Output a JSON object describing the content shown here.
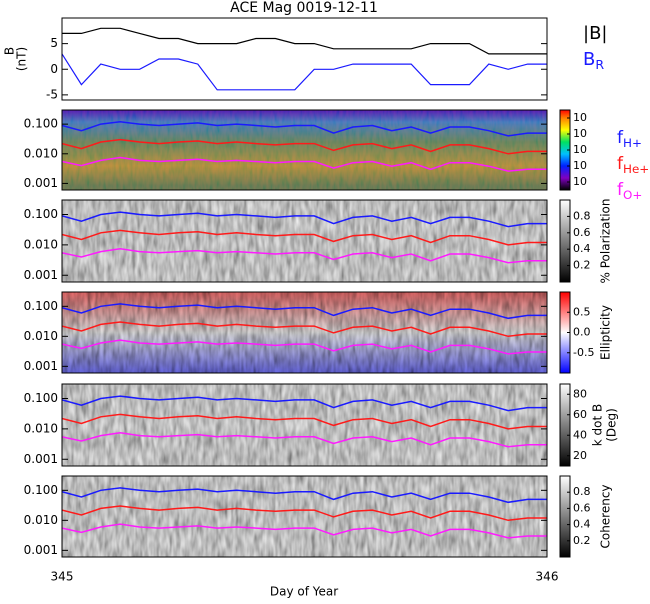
{
  "chart_data": {
    "type": "multi-panel",
    "title": "ACE Mag 0019-12-11",
    "xlabel": "Day of Year",
    "xlim": [
      345,
      346
    ],
    "xticks": [
      345,
      346
    ],
    "x": [
      345.0,
      345.04,
      345.08,
      345.12,
      345.16,
      345.2,
      345.24,
      345.28,
      345.32,
      345.36,
      345.4,
      345.44,
      345.48,
      345.52,
      345.56,
      345.6,
      345.64,
      345.68,
      345.72,
      345.76,
      345.8,
      345.84,
      345.88,
      345.92,
      345.96,
      346.0
    ],
    "frequency_series": [
      {
        "name": "f",
        "subscript": "H+",
        "color": "#1a1aff",
        "values": [
          0.09,
          0.06,
          0.1,
          0.12,
          0.1,
          0.09,
          0.1,
          0.11,
          0.09,
          0.1,
          0.09,
          0.08,
          0.09,
          0.09,
          0.05,
          0.08,
          0.09,
          0.06,
          0.08,
          0.05,
          0.08,
          0.08,
          0.06,
          0.04,
          0.05,
          0.05
        ]
      },
      {
        "name": "f",
        "subscript": "He+",
        "color": "#ff1a1a",
        "values": [
          0.022,
          0.015,
          0.025,
          0.03,
          0.025,
          0.022,
          0.025,
          0.027,
          0.022,
          0.025,
          0.022,
          0.02,
          0.022,
          0.022,
          0.013,
          0.02,
          0.022,
          0.015,
          0.02,
          0.012,
          0.02,
          0.02,
          0.015,
          0.01,
          0.012,
          0.012
        ]
      },
      {
        "name": "f",
        "subscript": "O+",
        "color": "#ff1aff",
        "values": [
          0.0055,
          0.004,
          0.006,
          0.0075,
          0.006,
          0.0055,
          0.006,
          0.0065,
          0.0055,
          0.006,
          0.0055,
          0.005,
          0.0055,
          0.0055,
          0.0033,
          0.005,
          0.0055,
          0.0038,
          0.005,
          0.003,
          0.005,
          0.005,
          0.0038,
          0.0026,
          0.003,
          0.003
        ]
      }
    ],
    "panels": [
      {
        "type": "line",
        "ylabel": "B",
        "yunit": "(nT)",
        "ylim": [
          -6,
          10
        ],
        "yticks": [
          -5,
          0,
          5
        ],
        "series": [
          {
            "name": "|B|",
            "color": "#000000",
            "values": [
              7,
              7,
              8,
              8,
              7,
              6,
              6,
              5,
              5,
              5,
              6,
              6,
              5,
              5,
              4,
              4,
              4,
              4,
              4,
              5,
              5,
              5,
              3,
              3,
              3,
              3
            ]
          },
          {
            "name": "B",
            "subscript": "R",
            "color": "#1a1aff",
            "values": [
              3,
              -3,
              1,
              0,
              0,
              2,
              2,
              1,
              -4,
              -4,
              -4,
              -4,
              -4,
              0,
              0,
              1,
              1,
              1,
              1,
              -3,
              -3,
              -3,
              1,
              0,
              1,
              1
            ]
          }
        ]
      },
      {
        "type": "spectrogram",
        "palette": "rainbow",
        "ylim": [
          0.0006,
          0.3
        ],
        "yticks": [
          {
            "value": 0.001,
            "label": "0.001"
          },
          {
            "value": 0.01,
            "label": "0.010"
          },
          {
            "value": 0.1,
            "label": "0.100"
          }
        ],
        "cbar_ticks": [
          {
            "value": 0.1,
            "label": "10"
          },
          {
            "value": 0.3,
            "label": "10"
          },
          {
            "value": 0.5,
            "label": "10"
          },
          {
            "value": 0.7,
            "label": "10"
          },
          {
            "value": 0.9,
            "label": "10"
          }
        ],
        "cbar_lim": [
          0,
          1
        ],
        "legend": true
      },
      {
        "type": "spectrogram",
        "palette": "gray",
        "cbar_label": "% Polarization",
        "ylim": [
          0.0006,
          0.3
        ],
        "yticks": [
          {
            "value": 0.001,
            "label": "0.001"
          },
          {
            "value": 0.01,
            "label": "0.010"
          },
          {
            "value": 0.1,
            "label": "0.100"
          }
        ],
        "cbar_lim": [
          0,
          1
        ],
        "cbar_ticks": [
          0.2,
          0.4,
          0.6,
          0.8
        ]
      },
      {
        "type": "spectrogram",
        "palette": "bwr",
        "cbar_label": "Ellipticity",
        "ylim": [
          0.0006,
          0.3
        ],
        "yticks": [
          {
            "value": 0.001,
            "label": "0.001"
          },
          {
            "value": 0.01,
            "label": "0.010"
          },
          {
            "value": 0.1,
            "label": "0.100"
          }
        ],
        "cbar_lim": [
          -1,
          1
        ],
        "cbar_ticks": [
          -0.5,
          {
            "value": 0,
            "label": "0.0"
          },
          0.5
        ]
      },
      {
        "type": "spectrogram",
        "palette": "gray",
        "cbar_label": "k dot B",
        "cbar_unit": "(Deg)",
        "ylim": [
          0.0006,
          0.3
        ],
        "yticks": [
          {
            "value": 0.001,
            "label": "0.001"
          },
          {
            "value": 0.01,
            "label": "0.010"
          },
          {
            "value": 0.1,
            "label": "0.100"
          }
        ],
        "cbar_lim": [
          10,
          90
        ],
        "cbar_ticks": [
          20,
          40,
          60,
          80
        ]
      },
      {
        "type": "spectrogram",
        "palette": "gray",
        "cbar_label": "Coherency",
        "ylim": [
          0.0006,
          0.3
        ],
        "yticks": [
          {
            "value": 0.001,
            "label": "0.001"
          },
          {
            "value": 0.01,
            "label": "0.010"
          },
          {
            "value": 0.1,
            "label": "0.100"
          }
        ],
        "cbar_lim": [
          0,
          1
        ],
        "cbar_ticks": [
          0.2,
          0.4,
          0.6,
          0.8
        ]
      }
    ]
  }
}
